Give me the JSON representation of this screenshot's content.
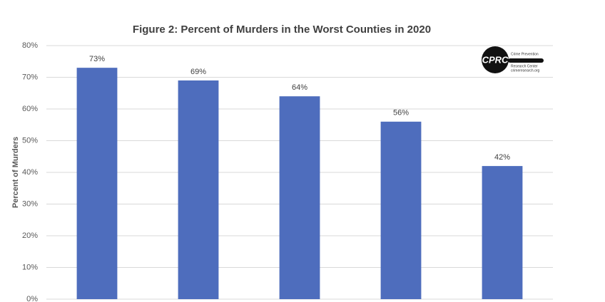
{
  "chart_data": {
    "type": "bar",
    "title": "Figure 2: Percent of Murders in the Worst Counties in 2020",
    "y_label": "Percent of Murders",
    "categories": [
      null,
      null,
      null,
      null,
      null
    ],
    "values": [
      73,
      69,
      64,
      56,
      42
    ],
    "value_labels": [
      "73%",
      "69%",
      "64%",
      "56%",
      "42%"
    ],
    "color": "#4e6dbd",
    "ylim": [
      0,
      80
    ],
    "yticks": [
      {
        "value": 0,
        "label": "0%"
      },
      {
        "value": 10,
        "label": "10%"
      },
      {
        "value": 20,
        "label": "20%"
      },
      {
        "value": 30,
        "label": "30%"
      },
      {
        "value": 40,
        "label": "40%"
      },
      {
        "value": 50,
        "label": "50%"
      },
      {
        "value": 60,
        "label": "60%"
      },
      {
        "value": 70,
        "label": "70%"
      },
      {
        "value": 80,
        "label": "80%"
      }
    ],
    "grid": true,
    "logo": {
      "mark": "CPRC",
      "lines": [
        "Crime Prevention",
        "Research Center",
        "crimeresearch.org"
      ]
    }
  }
}
